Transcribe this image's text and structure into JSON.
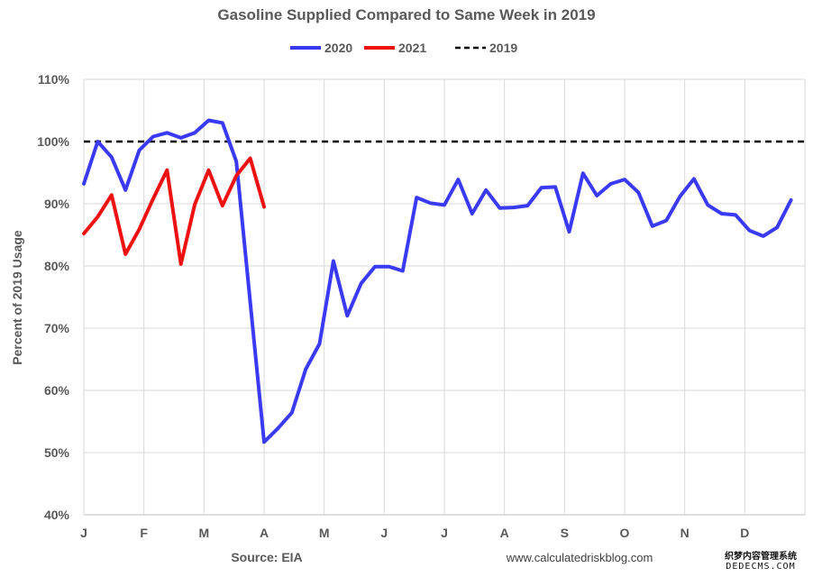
{
  "chart_data": {
    "type": "line",
    "title": "Gasoline Supplied Compared to Same Week in 2019",
    "ylabel": "Percent of 2019 Usage",
    "ylim": [
      40,
      110
    ],
    "yticks": [
      40,
      50,
      60,
      70,
      80,
      90,
      100,
      110
    ],
    "ytick_labels": [
      "40%",
      "50%",
      "60%",
      "70%",
      "80%",
      "90%",
      "100%",
      "110%"
    ],
    "xlim": [
      0,
      52
    ],
    "month_labels": [
      "J",
      "F",
      "M",
      "A",
      "M",
      "J",
      "J",
      "A",
      "S",
      "O",
      "N",
      "D"
    ],
    "grid": true,
    "legend_position": "top",
    "series": [
      {
        "name": "2020",
        "color": "#3a3af5",
        "style": "solid",
        "values": [
          93.2,
          100,
          97.5,
          92.2,
          98.6,
          100.8,
          101.4,
          100.6,
          101.4,
          103.4,
          103,
          96.8,
          74.2,
          51.7,
          53.9,
          56.4,
          63.4,
          67.5,
          80.8,
          72,
          77.2,
          79.9,
          79.9,
          79.2,
          91,
          90.1,
          89.8,
          93.9,
          88.4,
          92.2,
          89.3,
          89.4,
          89.7,
          92.6,
          92.7,
          85.5,
          94.9,
          91.3,
          93.2,
          93.9,
          91.8,
          86.4,
          87.3,
          91.2,
          94,
          89.8,
          88.4,
          88.2,
          85.7,
          84.8,
          86.2,
          90.6
        ]
      },
      {
        "name": "2021",
        "color": "#ee1111",
        "style": "solid",
        "values": [
          85.2,
          87.9,
          91.4,
          81.9,
          85.9,
          90.8,
          95.4,
          80.3,
          89.9,
          95.4,
          89.7,
          94.5,
          97.3,
          89.5
        ]
      },
      {
        "name": "2019",
        "color": "#000000",
        "style": "dashed",
        "values": [
          100,
          100
        ]
      }
    ],
    "source": "Source: EIA",
    "credit": "www.calculatedriskblog.com"
  },
  "watermark": {
    "line1": "织梦内容管理系统",
    "line2": "DEDECMS.COM"
  }
}
